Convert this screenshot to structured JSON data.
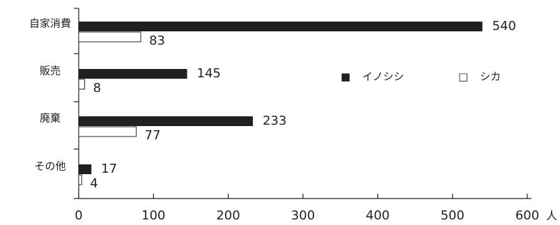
{
  "chart_data": {
    "type": "bar",
    "orientation": "horizontal",
    "categories": [
      "自家消費",
      "販売",
      "廃棄",
      "その他"
    ],
    "series": [
      {
        "name": "イノシシ",
        "values": [
          540,
          145,
          233,
          17
        ],
        "color": "#231f20",
        "fill": "solid"
      },
      {
        "name": "シカ",
        "values": [
          83,
          8,
          77,
          4
        ],
        "color": "#231f20",
        "fill": "none"
      }
    ],
    "xlim": [
      0,
      600
    ],
    "x_ticks": [
      "0",
      "100",
      "200",
      "300",
      "400",
      "500",
      "600"
    ],
    "x_unit": "人",
    "grid": false,
    "legend": {
      "position": "right",
      "markers": [
        "■",
        "□"
      ]
    }
  }
}
